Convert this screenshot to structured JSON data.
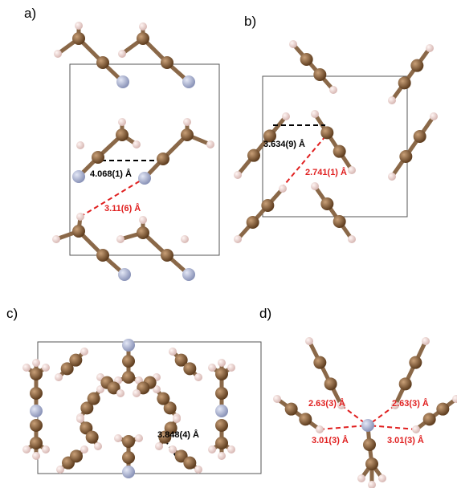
{
  "panels": [
    {
      "label": "a)",
      "distances": [
        "4.068(1) Å",
        "3.11(6) Å"
      ]
    },
    {
      "label": "b)",
      "distances": [
        "3.634(9) Å",
        "2.741(1) Å"
      ]
    },
    {
      "label": "c)",
      "distances": [
        "3.848(4) Å"
      ]
    },
    {
      "label": "d)",
      "distances": [
        "2.63(3) Å",
        "2.63(3) Å",
        "3.01(3) Å",
        "3.01(3) Å"
      ]
    }
  ]
}
